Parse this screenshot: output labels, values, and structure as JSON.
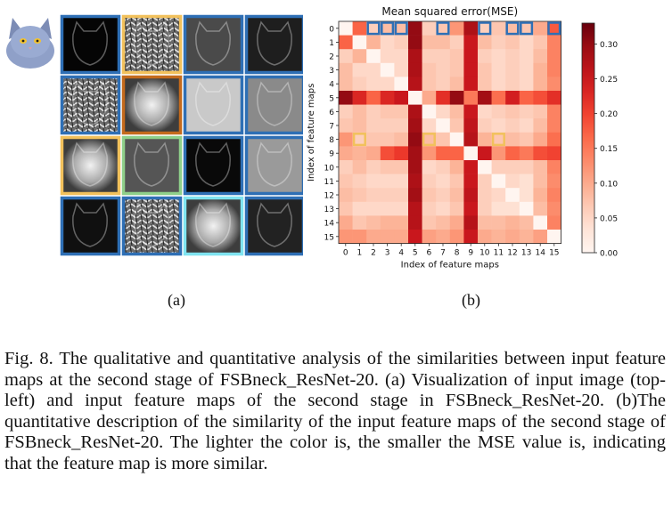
{
  "panel_a": {
    "label": "(a)",
    "input_image": "cat-photo",
    "feature_maps": [
      {
        "index": 0,
        "border": "#2e6fb5"
      },
      {
        "index": 1,
        "border": "#f2c15c"
      },
      {
        "index": 2,
        "border": "#2e6fb5"
      },
      {
        "index": 3,
        "border": "#2e6fb5"
      },
      {
        "index": 4,
        "border": "#2e6fb5"
      },
      {
        "index": 5,
        "border": "#c46a1c"
      },
      {
        "index": 6,
        "border": "#2e6fb5"
      },
      {
        "index": 7,
        "border": "#2e6fb5"
      },
      {
        "index": 8,
        "border": "#f2c15c"
      },
      {
        "index": 9,
        "border": "#8fd08a"
      },
      {
        "index": 10,
        "border": "#2e6fb5"
      },
      {
        "index": 11,
        "border": "#2e6fb5"
      },
      {
        "index": 12,
        "border": "#2e6fb5"
      },
      {
        "index": 13,
        "border": "#2e6fb5"
      },
      {
        "index": 14,
        "border": "#7fe3f0"
      },
      {
        "index": 15,
        "border": "#2e6fb5"
      }
    ]
  },
  "panel_b": {
    "label": "(b)"
  },
  "chart_data": {
    "type": "heatmap",
    "title": "Mean squared error(MSE)",
    "xlabel": "Index of feature maps",
    "ylabel": "Index of feature maps",
    "x_ticks": [
      "0",
      "1",
      "2",
      "3",
      "4",
      "5",
      "6",
      "7",
      "8",
      "9",
      "10",
      "11",
      "12",
      "13",
      "14",
      "15"
    ],
    "y_ticks": [
      "0",
      "1",
      "2",
      "3",
      "4",
      "5",
      "6",
      "7",
      "8",
      "9",
      "10",
      "11",
      "12",
      "13",
      "14",
      "15"
    ],
    "colorbar_ticks": [
      "0.00",
      "0.05",
      "0.10",
      "0.15",
      "0.20",
      "0.25",
      "0.30"
    ],
    "colorbar_range": [
      0,
      0.33
    ],
    "colormap": "Reds",
    "values": [
      [
        0.0,
        0.17,
        0.06,
        0.08,
        0.08,
        0.3,
        0.06,
        0.07,
        0.12,
        0.28,
        0.06,
        0.07,
        0.08,
        0.07,
        0.1,
        0.18
      ],
      [
        0.17,
        0.0,
        0.09,
        0.05,
        0.06,
        0.3,
        0.08,
        0.08,
        0.06,
        0.25,
        0.08,
        0.06,
        0.07,
        0.05,
        0.07,
        0.14
      ],
      [
        0.06,
        0.09,
        0.0,
        0.05,
        0.05,
        0.28,
        0.06,
        0.06,
        0.07,
        0.25,
        0.06,
        0.05,
        0.06,
        0.05,
        0.08,
        0.14
      ],
      [
        0.08,
        0.05,
        0.05,
        0.0,
        0.05,
        0.28,
        0.07,
        0.06,
        0.07,
        0.25,
        0.07,
        0.05,
        0.06,
        0.05,
        0.09,
        0.14
      ],
      [
        0.08,
        0.06,
        0.05,
        0.05,
        0.0,
        0.27,
        0.07,
        0.06,
        0.08,
        0.25,
        0.07,
        0.05,
        0.06,
        0.05,
        0.09,
        0.13
      ],
      [
        0.3,
        0.23,
        0.17,
        0.23,
        0.25,
        0.0,
        0.1,
        0.22,
        0.3,
        0.15,
        0.29,
        0.16,
        0.24,
        0.17,
        0.19,
        0.22
      ],
      [
        0.06,
        0.08,
        0.06,
        0.07,
        0.07,
        0.28,
        0.0,
        0.05,
        0.08,
        0.25,
        0.05,
        0.06,
        0.07,
        0.06,
        0.07,
        0.14
      ],
      [
        0.07,
        0.08,
        0.06,
        0.06,
        0.06,
        0.29,
        0.05,
        0.0,
        0.07,
        0.26,
        0.06,
        0.05,
        0.06,
        0.05,
        0.08,
        0.14
      ],
      [
        0.12,
        0.06,
        0.07,
        0.07,
        0.08,
        0.3,
        0.08,
        0.07,
        0.0,
        0.27,
        0.09,
        0.07,
        0.08,
        0.07,
        0.1,
        0.16
      ],
      [
        0.1,
        0.09,
        0.1,
        0.19,
        0.21,
        0.29,
        0.12,
        0.17,
        0.17,
        0.0,
        0.25,
        0.12,
        0.17,
        0.15,
        0.19,
        0.2
      ],
      [
        0.06,
        0.08,
        0.06,
        0.07,
        0.07,
        0.29,
        0.05,
        0.06,
        0.09,
        0.25,
        0.0,
        0.06,
        0.06,
        0.06,
        0.08,
        0.14
      ],
      [
        0.07,
        0.06,
        0.05,
        0.05,
        0.05,
        0.28,
        0.06,
        0.05,
        0.07,
        0.25,
        0.06,
        0.0,
        0.05,
        0.04,
        0.08,
        0.13
      ],
      [
        0.08,
        0.07,
        0.06,
        0.06,
        0.06,
        0.29,
        0.07,
        0.06,
        0.08,
        0.26,
        0.06,
        0.05,
        0.0,
        0.04,
        0.09,
        0.14
      ],
      [
        0.07,
        0.05,
        0.05,
        0.05,
        0.05,
        0.27,
        0.06,
        0.05,
        0.07,
        0.25,
        0.06,
        0.04,
        0.04,
        0.0,
        0.08,
        0.13
      ],
      [
        0.1,
        0.07,
        0.08,
        0.09,
        0.09,
        0.27,
        0.07,
        0.08,
        0.1,
        0.27,
        0.08,
        0.08,
        0.09,
        0.08,
        0.0,
        0.14
      ],
      [
        0.12,
        0.12,
        0.1,
        0.1,
        0.1,
        0.25,
        0.11,
        0.1,
        0.12,
        0.25,
        0.1,
        0.09,
        0.1,
        0.09,
        0.11,
        0.0
      ]
    ],
    "highlighted_cells": [
      {
        "row": 0,
        "col": 2,
        "color": "#2e6fb5"
      },
      {
        "row": 0,
        "col": 3,
        "color": "#2e6fb5"
      },
      {
        "row": 0,
        "col": 4,
        "color": "#2e6fb5"
      },
      {
        "row": 0,
        "col": 7,
        "color": "#2e6fb5"
      },
      {
        "row": 0,
        "col": 10,
        "color": "#2e6fb5"
      },
      {
        "row": 0,
        "col": 12,
        "color": "#2e6fb5"
      },
      {
        "row": 0,
        "col": 13,
        "color": "#2e6fb5"
      },
      {
        "row": 0,
        "col": 15,
        "color": "#2e6fb5"
      },
      {
        "row": 8,
        "col": 1,
        "color": "#f2c15c"
      },
      {
        "row": 8,
        "col": 6,
        "color": "#f2c15c"
      },
      {
        "row": 8,
        "col": 11,
        "color": "#f2c15c"
      }
    ]
  },
  "caption": {
    "text": "Fig. 8.   The qualitative and quantitative analysis of the similarities between input feature maps at the second stage of FSBneck_ResNet-20. (a) Visualization of input image (top-left) and input feature maps of the second stage in FSBneck_ResNet-20. (b)The quantitative description of the similarity of the input feature maps of the second stage of FSBneck_ResNet-20. The lighter the color is, the smaller the MSE value is, indicating that the feature map is more similar."
  }
}
